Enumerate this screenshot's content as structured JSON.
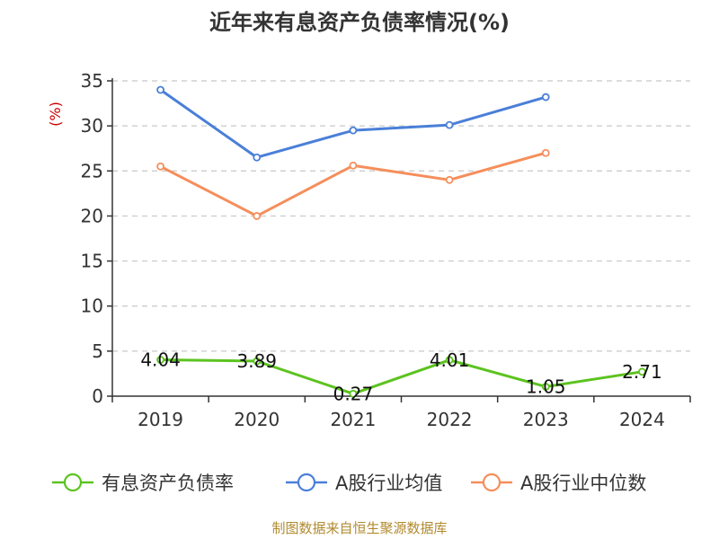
{
  "chart_data": {
    "type": "line",
    "title": "近年来有息资产负债率情况(%)",
    "ylabel": "(%)",
    "xlabel": "",
    "ylim": [
      0,
      35
    ],
    "yticks": [
      0,
      5,
      10,
      15,
      20,
      25,
      30,
      35
    ],
    "categories": [
      "2019",
      "2020",
      "2021",
      "2022",
      "2023",
      "2024"
    ],
    "grid": true,
    "legend_position": "bottom",
    "series": [
      {
        "name": "有息资产负债率",
        "color": "#5cc31f",
        "values": [
          4.04,
          3.89,
          0.27,
          4.01,
          1.05,
          2.71
        ],
        "labels": [
          "4.04",
          "3.89",
          "0.27",
          "4.01",
          "1.05",
          "2.71"
        ]
      },
      {
        "name": "A股行业均值",
        "color": "#4a7fd8",
        "values": [
          34.0,
          26.5,
          29.5,
          30.1,
          33.2,
          null
        ]
      },
      {
        "name": "A股行业中位数",
        "color": "#f58e5b",
        "values": [
          25.5,
          20.0,
          25.6,
          24.0,
          27.0,
          null
        ]
      }
    ]
  },
  "source": "制图数据来自恒生聚源数据库"
}
